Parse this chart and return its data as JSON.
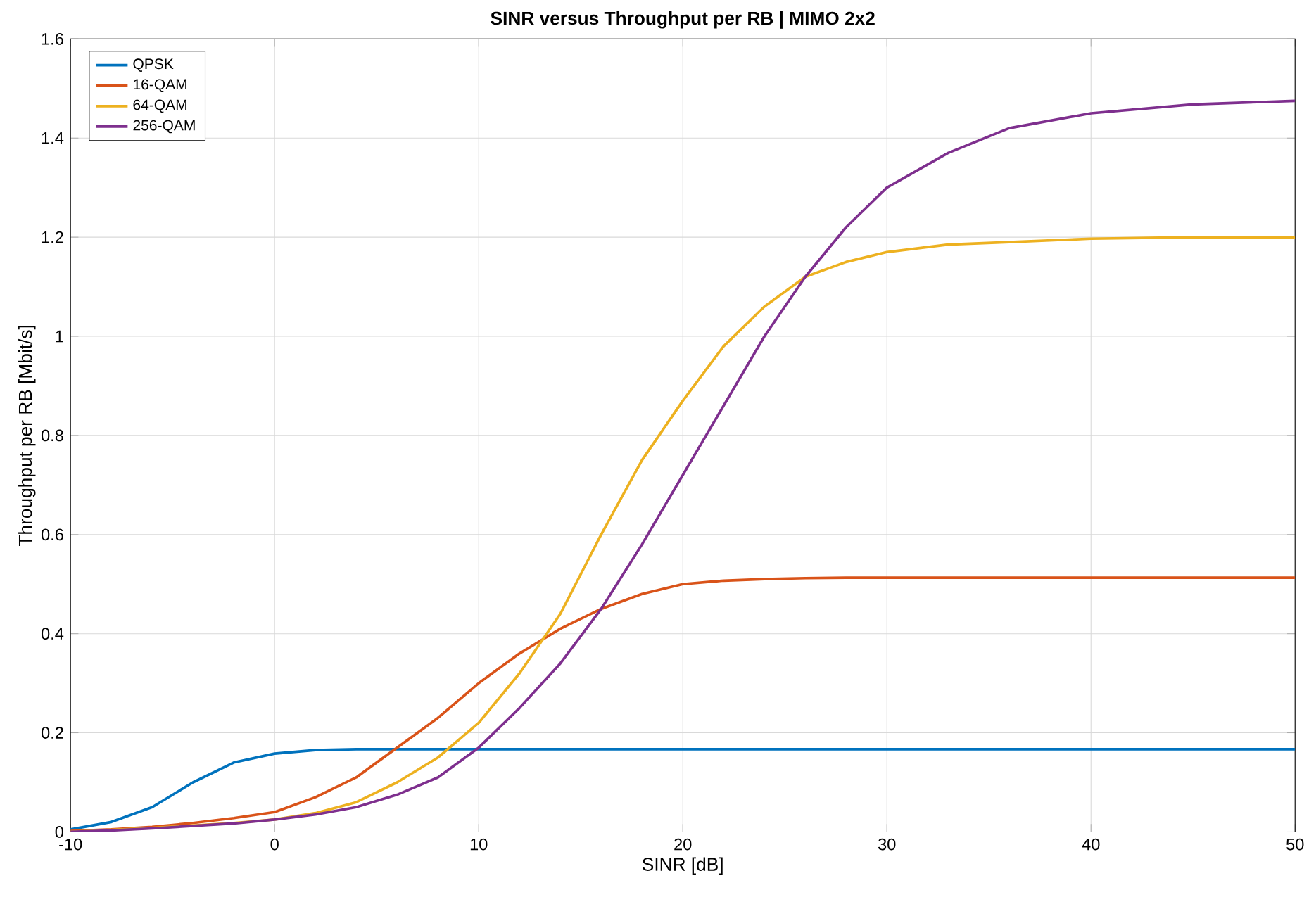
{
  "chart_data": {
    "type": "line",
    "title": "SINR versus Throughput per RB | MIMO 2x2",
    "xlabel": "SINR [dB]",
    "ylabel": "Throughput per RB [Mbit/s]",
    "xlim": [
      -10,
      50
    ],
    "ylim": [
      0,
      1.6
    ],
    "xticks": [
      -10,
      0,
      10,
      20,
      30,
      40,
      50
    ],
    "yticks": [
      0,
      0.2,
      0.4,
      0.6,
      0.8,
      1,
      1.2,
      1.4,
      1.6
    ],
    "grid": true,
    "legend": "top left",
    "x": [
      -10,
      -8,
      -6,
      -4,
      -2,
      0,
      2,
      4,
      6,
      8,
      10,
      12,
      14,
      16,
      18,
      20,
      22,
      24,
      26,
      28,
      30,
      33,
      36,
      40,
      45,
      50
    ],
    "series": [
      {
        "name": "QPSK",
        "color": "#0072bd",
        "values": [
          0.005,
          0.02,
          0.05,
          0.1,
          0.14,
          0.158,
          0.165,
          0.167,
          0.167,
          0.167,
          0.167,
          0.167,
          0.167,
          0.167,
          0.167,
          0.167,
          0.167,
          0.167,
          0.167,
          0.167,
          0.167,
          0.167,
          0.167,
          0.167,
          0.167,
          0.167
        ]
      },
      {
        "name": "16-QAM",
        "color": "#d95319",
        "values": [
          0.002,
          0.005,
          0.01,
          0.018,
          0.028,
          0.04,
          0.07,
          0.11,
          0.17,
          0.23,
          0.3,
          0.36,
          0.41,
          0.45,
          0.48,
          0.5,
          0.507,
          0.51,
          0.512,
          0.513,
          0.513,
          0.513,
          0.513,
          0.513,
          0.513,
          0.513
        ]
      },
      {
        "name": "64-QAM",
        "color": "#edb120",
        "values": [
          0.0,
          0.004,
          0.008,
          0.013,
          0.018,
          0.025,
          0.038,
          0.06,
          0.1,
          0.15,
          0.22,
          0.32,
          0.44,
          0.6,
          0.75,
          0.87,
          0.98,
          1.06,
          1.12,
          1.15,
          1.17,
          1.185,
          1.19,
          1.197,
          1.2,
          1.2
        ]
      },
      {
        "name": "256-QAM",
        "color": "#7e2f8e",
        "values": [
          0.0,
          0.003,
          0.007,
          0.012,
          0.017,
          0.025,
          0.035,
          0.05,
          0.075,
          0.11,
          0.17,
          0.25,
          0.34,
          0.45,
          0.58,
          0.72,
          0.86,
          1.0,
          1.12,
          1.22,
          1.3,
          1.37,
          1.42,
          1.45,
          1.468,
          1.475
        ]
      }
    ]
  }
}
